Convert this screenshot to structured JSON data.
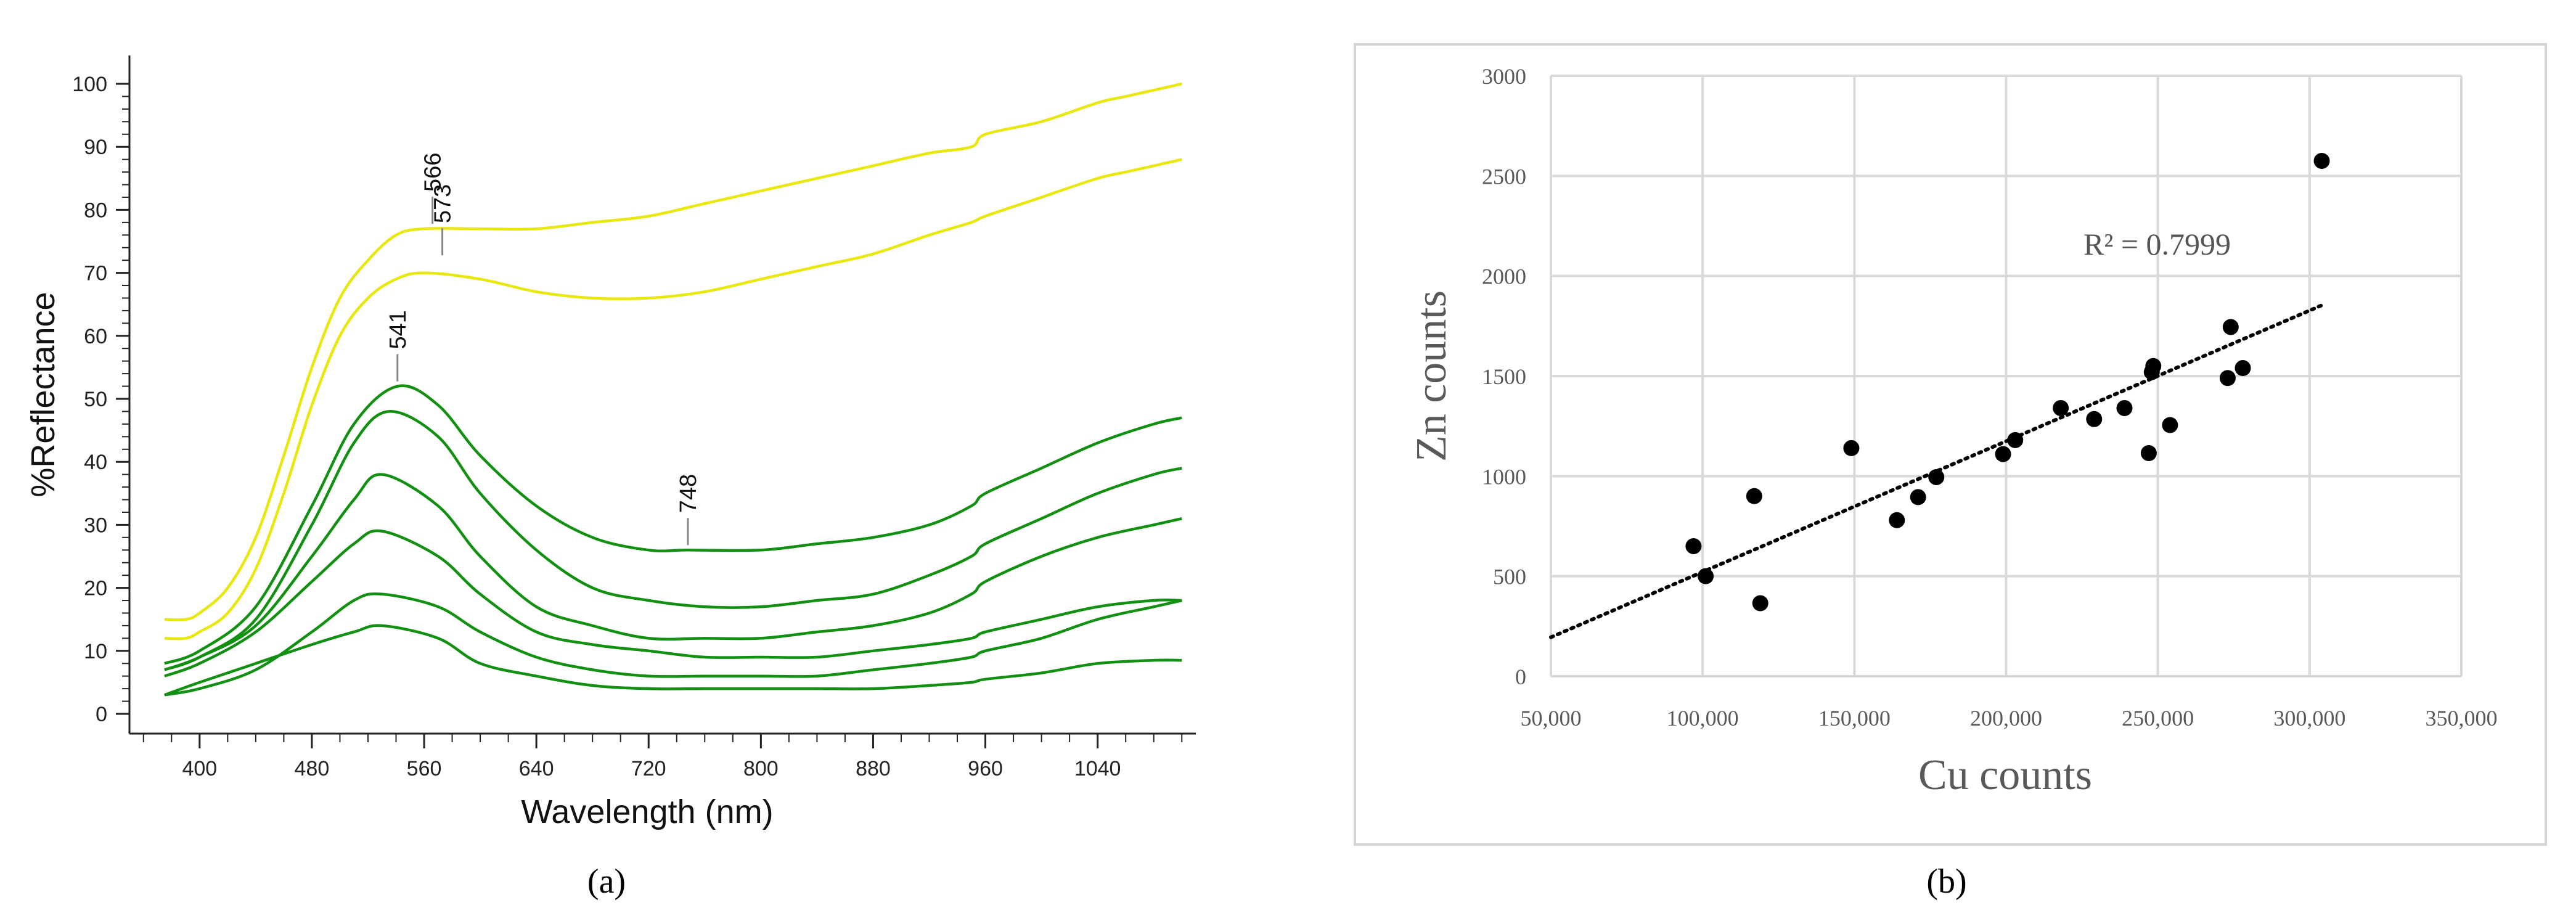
{
  "panel_labels": {
    "a": "(a)",
    "b": "(b)"
  },
  "chart_data": [
    {
      "type": "line",
      "xlabel": "Wavelength (nm)",
      "ylabel": "%Reflectance",
      "xlim": [
        350,
        1110
      ],
      "ylim": [
        0,
        100
      ],
      "xticks": [
        400,
        480,
        560,
        640,
        720,
        800,
        880,
        960,
        1040
      ],
      "yticks": [
        0,
        10,
        20,
        30,
        40,
        50,
        60,
        70,
        80,
        90,
        100
      ],
      "grid": false,
      "colors": {
        "yellow": "#E8E80C",
        "green": "#119011"
      },
      "annotations": [
        {
          "text": "566",
          "x": 566,
          "y": 77
        },
        {
          "text": "573",
          "x": 573,
          "y": 72
        },
        {
          "text": "541",
          "x": 541,
          "y": 52
        },
        {
          "text": "748",
          "x": 748,
          "y": 26
        }
      ],
      "series": [
        {
          "color": "yellow",
          "x": [
            375,
            390,
            400,
            420,
            440,
            460,
            480,
            500,
            520,
            540,
            560,
            600,
            640,
            680,
            720,
            760,
            800,
            840,
            880,
            920,
            950,
            960,
            1000,
            1040,
            1060,
            1080,
            1100
          ],
          "y": [
            15,
            15,
            16,
            20,
            28,
            41,
            55,
            66,
            72,
            76,
            77,
            77,
            77,
            78,
            79,
            81,
            83,
            85,
            87,
            89,
            90,
            92,
            94,
            97,
            98,
            99,
            100
          ]
        },
        {
          "color": "yellow",
          "x": [
            375,
            390,
            400,
            420,
            440,
            460,
            480,
            500,
            520,
            540,
            560,
            600,
            640,
            680,
            720,
            760,
            800,
            840,
            880,
            920,
            950,
            960,
            1000,
            1040,
            1060,
            1080,
            1100
          ],
          "y": [
            12,
            12,
            13,
            16,
            23,
            35,
            49,
            60,
            66,
            69,
            70,
            69,
            67,
            66,
            66,
            67,
            69,
            71,
            73,
            76,
            78,
            79,
            82,
            85,
            86,
            87,
            88
          ]
        },
        {
          "color": "green",
          "x": [
            375,
            400,
            440,
            480,
            510,
            541,
            570,
            600,
            640,
            680,
            720,
            748,
            800,
            840,
            880,
            920,
            950,
            960,
            1000,
            1040,
            1080,
            1100
          ],
          "y": [
            8,
            10,
            17,
            33,
            46,
            52,
            49,
            41,
            33,
            28,
            26,
            26,
            26,
            27,
            28,
            30,
            33,
            35,
            39,
            43,
            46,
            47
          ]
        },
        {
          "color": "green",
          "x": [
            375,
            400,
            440,
            480,
            510,
            535,
            570,
            600,
            640,
            680,
            720,
            760,
            800,
            840,
            880,
            920,
            950,
            960,
            1000,
            1040,
            1080,
            1100
          ],
          "y": [
            7,
            9,
            15,
            30,
            43,
            48,
            44,
            35,
            26,
            20,
            18,
            17,
            17,
            18,
            19,
            22,
            25,
            27,
            31,
            35,
            38,
            39
          ]
        },
        {
          "color": "green",
          "x": [
            375,
            400,
            440,
            480,
            510,
            530,
            570,
            600,
            640,
            680,
            720,
            760,
            800,
            840,
            880,
            920,
            950,
            960,
            1000,
            1040,
            1080,
            1100
          ],
          "y": [
            7,
            9,
            14,
            25,
            34,
            38,
            33,
            25,
            17,
            14,
            12,
            12,
            12,
            13,
            14,
            16,
            19,
            21,
            25,
            28,
            30,
            31
          ]
        },
        {
          "color": "green",
          "x": [
            375,
            400,
            440,
            480,
            510,
            530,
            570,
            600,
            640,
            680,
            720,
            760,
            800,
            840,
            880,
            920,
            950,
            960,
            1000,
            1040,
            1080,
            1100
          ],
          "y": [
            6,
            8,
            13,
            21,
            27,
            29,
            25,
            19,
            13,
            11,
            10,
            9,
            9,
            9,
            10,
            11,
            12,
            13,
            15,
            17,
            18,
            18
          ]
        },
        {
          "color": "green",
          "x": [
            375,
            400,
            440,
            480,
            510,
            530,
            570,
            600,
            640,
            680,
            720,
            760,
            800,
            840,
            880,
            920,
            950,
            960,
            1000,
            1040,
            1080,
            1100
          ],
          "y": [
            3,
            4,
            7,
            13,
            18,
            19,
            17,
            13,
            9,
            7,
            6,
            6,
            6,
            6,
            7,
            8,
            9,
            10,
            12,
            15,
            17,
            18
          ]
        },
        {
          "color": "green",
          "x": [
            375,
            400,
            440,
            480,
            510,
            530,
            570,
            600,
            640,
            680,
            720,
            760,
            800,
            840,
            880,
            920,
            950,
            960,
            1000,
            1040,
            1080,
            1100
          ],
          "y": [
            3,
            5,
            8,
            11,
            13,
            14,
            12,
            8,
            6,
            4.5,
            4,
            4,
            4,
            4,
            4,
            4.5,
            5,
            5.5,
            6.5,
            8,
            8.5,
            8.5
          ]
        }
      ]
    },
    {
      "type": "scatter",
      "xlabel": "Cu counts",
      "ylabel": "Zn counts",
      "xlim": [
        50000,
        350000
      ],
      "ylim": [
        0,
        3000
      ],
      "xticks": [
        50000,
        100000,
        150000,
        200000,
        250000,
        300000,
        350000
      ],
      "xtick_labels": [
        "50,000",
        "100,000",
        "150,000",
        "200,000",
        "250,000",
        "300,000",
        "350,000"
      ],
      "yticks": [
        0,
        500,
        1000,
        1500,
        2000,
        2500,
        3000
      ],
      "grid": true,
      "annotation": "R² = 0.7999",
      "trendline": {
        "x": [
          50000,
          305000
        ],
        "y": [
          195,
          1860
        ]
      },
      "points": [
        [
          97000,
          650
        ],
        [
          101000,
          500
        ],
        [
          117000,
          900
        ],
        [
          119000,
          365
        ],
        [
          149000,
          1140
        ],
        [
          164000,
          780
        ],
        [
          171000,
          895
        ],
        [
          177000,
          995
        ],
        [
          199000,
          1110
        ],
        [
          203000,
          1180
        ],
        [
          218000,
          1340
        ],
        [
          229000,
          1285
        ],
        [
          239000,
          1340
        ],
        [
          247000,
          1115
        ],
        [
          248000,
          1520
        ],
        [
          248500,
          1550
        ],
        [
          254000,
          1255
        ],
        [
          273000,
          1490
        ],
        [
          274000,
          1745
        ],
        [
          278000,
          1540
        ],
        [
          304000,
          2575
        ]
      ]
    }
  ]
}
